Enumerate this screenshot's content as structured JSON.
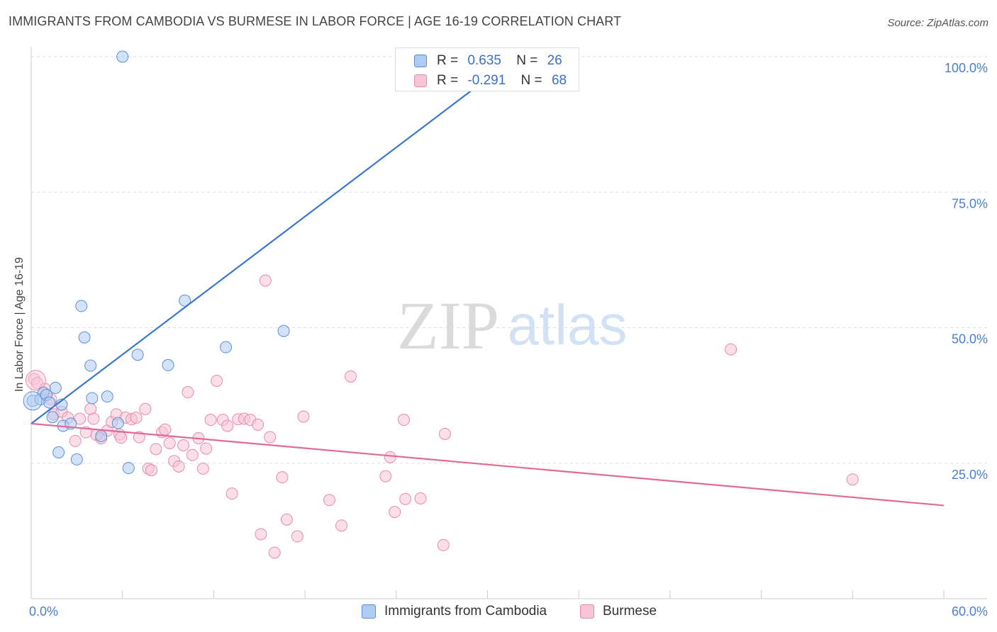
{
  "header": {
    "title": "IMMIGRANTS FROM CAMBODIA VS BURMESE IN LABOR FORCE | AGE 16-19 CORRELATION CHART",
    "source": "Source: ZipAtlas.com"
  },
  "watermark": {
    "zip": "ZIP",
    "atlas": "atlas"
  },
  "legend_top": {
    "rows": [
      {
        "r_label": "R =",
        "r_value": "0.635",
        "n_label": "N =",
        "n_value": "26"
      },
      {
        "r_label": "R =",
        "r_value": "-0.291",
        "n_label": "N =",
        "n_value": "68"
      }
    ]
  },
  "legend_bottom": {
    "items": [
      {
        "label": "Immigrants from Cambodia"
      },
      {
        "label": "Burmese"
      }
    ]
  },
  "colors": {
    "blue_fill": "#aecbf2",
    "blue_stroke": "#5b8fd6",
    "blue_line": "#3a76d0",
    "pink_fill": "#f8c5d6",
    "pink_stroke": "#e98aaa",
    "pink_line": "#e06a98",
    "grid": "#dcdcdc",
    "axis_text": "#4a7fcf"
  },
  "chart_data": {
    "type": "scatter",
    "title": "IMMIGRANTS FROM CAMBODIA VS BURMESE IN LABOR FORCE | AGE 16-19 CORRELATION CHART",
    "xlabel": "",
    "ylabel": "In Labor Force | Age 16-19",
    "xlim": [
      0,
      60
    ],
    "ylim": [
      0,
      103
    ],
    "x_tick_labels": [
      "0.0%",
      "60.0%"
    ],
    "y_ticks": [
      25,
      50,
      75,
      100
    ],
    "y_tick_labels": [
      "25.0%",
      "50.0%",
      "75.0%",
      "100.0%"
    ],
    "series": [
      {
        "name": "Immigrants from Cambodia",
        "r": 0.635,
        "n": 26,
        "trend": {
          "x0": 0.0,
          "y0": 32.3,
          "x1": 30.0,
          "y1": 96.0
        },
        "points": [
          [
            0.1,
            36.5
          ],
          [
            0.6,
            36.8
          ],
          [
            0.8,
            38.0
          ],
          [
            1.0,
            37.6
          ],
          [
            1.2,
            36.2
          ],
          [
            1.4,
            33.5
          ],
          [
            1.6,
            38.9
          ],
          [
            1.8,
            27.0
          ],
          [
            2.0,
            35.8
          ],
          [
            2.1,
            31.9
          ],
          [
            2.6,
            32.3
          ],
          [
            3.0,
            25.7
          ],
          [
            3.3,
            54.0
          ],
          [
            3.5,
            48.2
          ],
          [
            3.9,
            43.0
          ],
          [
            4.0,
            37.0
          ],
          [
            4.6,
            30.0
          ],
          [
            5.0,
            37.3
          ],
          [
            5.7,
            32.4
          ],
          [
            6.0,
            100.0
          ],
          [
            6.4,
            24.1
          ],
          [
            7.0,
            45.0
          ],
          [
            9.0,
            43.1
          ],
          [
            10.1,
            55.0
          ],
          [
            12.8,
            46.4
          ],
          [
            16.6,
            49.4
          ]
        ]
      },
      {
        "name": "Burmese",
        "r": -0.291,
        "n": 68,
        "trend": {
          "x0": 0.0,
          "y0": 32.3,
          "x1": 60.0,
          "y1": 17.2
        },
        "points": [
          [
            0.2,
            40.5
          ],
          [
            0.4,
            39.8
          ],
          [
            0.9,
            38.7
          ],
          [
            1.3,
            36.8
          ],
          [
            1.5,
            34.0
          ],
          [
            2.0,
            34.5
          ],
          [
            2.4,
            33.4
          ],
          [
            2.9,
            29.1
          ],
          [
            3.2,
            33.2
          ],
          [
            3.6,
            30.7
          ],
          [
            3.9,
            35.0
          ],
          [
            4.1,
            33.2
          ],
          [
            4.3,
            30.2
          ],
          [
            4.6,
            29.6
          ],
          [
            5.0,
            31.0
          ],
          [
            5.3,
            32.6
          ],
          [
            5.6,
            34.0
          ],
          [
            5.8,
            30.3
          ],
          [
            5.9,
            29.7
          ],
          [
            6.2,
            33.4
          ],
          [
            6.6,
            33.1
          ],
          [
            6.9,
            33.4
          ],
          [
            7.1,
            29.8
          ],
          [
            7.5,
            35.0
          ],
          [
            7.7,
            24.0
          ],
          [
            7.9,
            23.7
          ],
          [
            8.2,
            27.6
          ],
          [
            8.6,
            30.7
          ],
          [
            8.8,
            31.2
          ],
          [
            9.1,
            28.7
          ],
          [
            9.4,
            25.4
          ],
          [
            9.7,
            24.4
          ],
          [
            10.0,
            28.3
          ],
          [
            10.3,
            38.1
          ],
          [
            10.6,
            26.5
          ],
          [
            11.0,
            29.6
          ],
          [
            11.3,
            24.0
          ],
          [
            11.5,
            27.7
          ],
          [
            11.8,
            33.0
          ],
          [
            12.2,
            40.2
          ],
          [
            12.6,
            33.0
          ],
          [
            12.9,
            31.9
          ],
          [
            13.2,
            19.4
          ],
          [
            13.6,
            33.1
          ],
          [
            14.0,
            33.2
          ],
          [
            14.4,
            33.0
          ],
          [
            14.9,
            32.1
          ],
          [
            15.1,
            11.9
          ],
          [
            15.4,
            58.7
          ],
          [
            15.7,
            29.8
          ],
          [
            16.0,
            8.5
          ],
          [
            16.5,
            22.4
          ],
          [
            16.8,
            14.6
          ],
          [
            17.5,
            11.5
          ],
          [
            17.9,
            33.6
          ],
          [
            19.6,
            18.2
          ],
          [
            20.4,
            13.5
          ],
          [
            21.0,
            41.0
          ],
          [
            23.3,
            22.6
          ],
          [
            23.6,
            26.1
          ],
          [
            23.9,
            16.0
          ],
          [
            24.5,
            33.0
          ],
          [
            24.6,
            18.4
          ],
          [
            25.6,
            18.5
          ],
          [
            27.1,
            9.9
          ],
          [
            27.2,
            30.4
          ],
          [
            46.0,
            46.0
          ],
          [
            54.0,
            22.0
          ]
        ]
      }
    ]
  }
}
